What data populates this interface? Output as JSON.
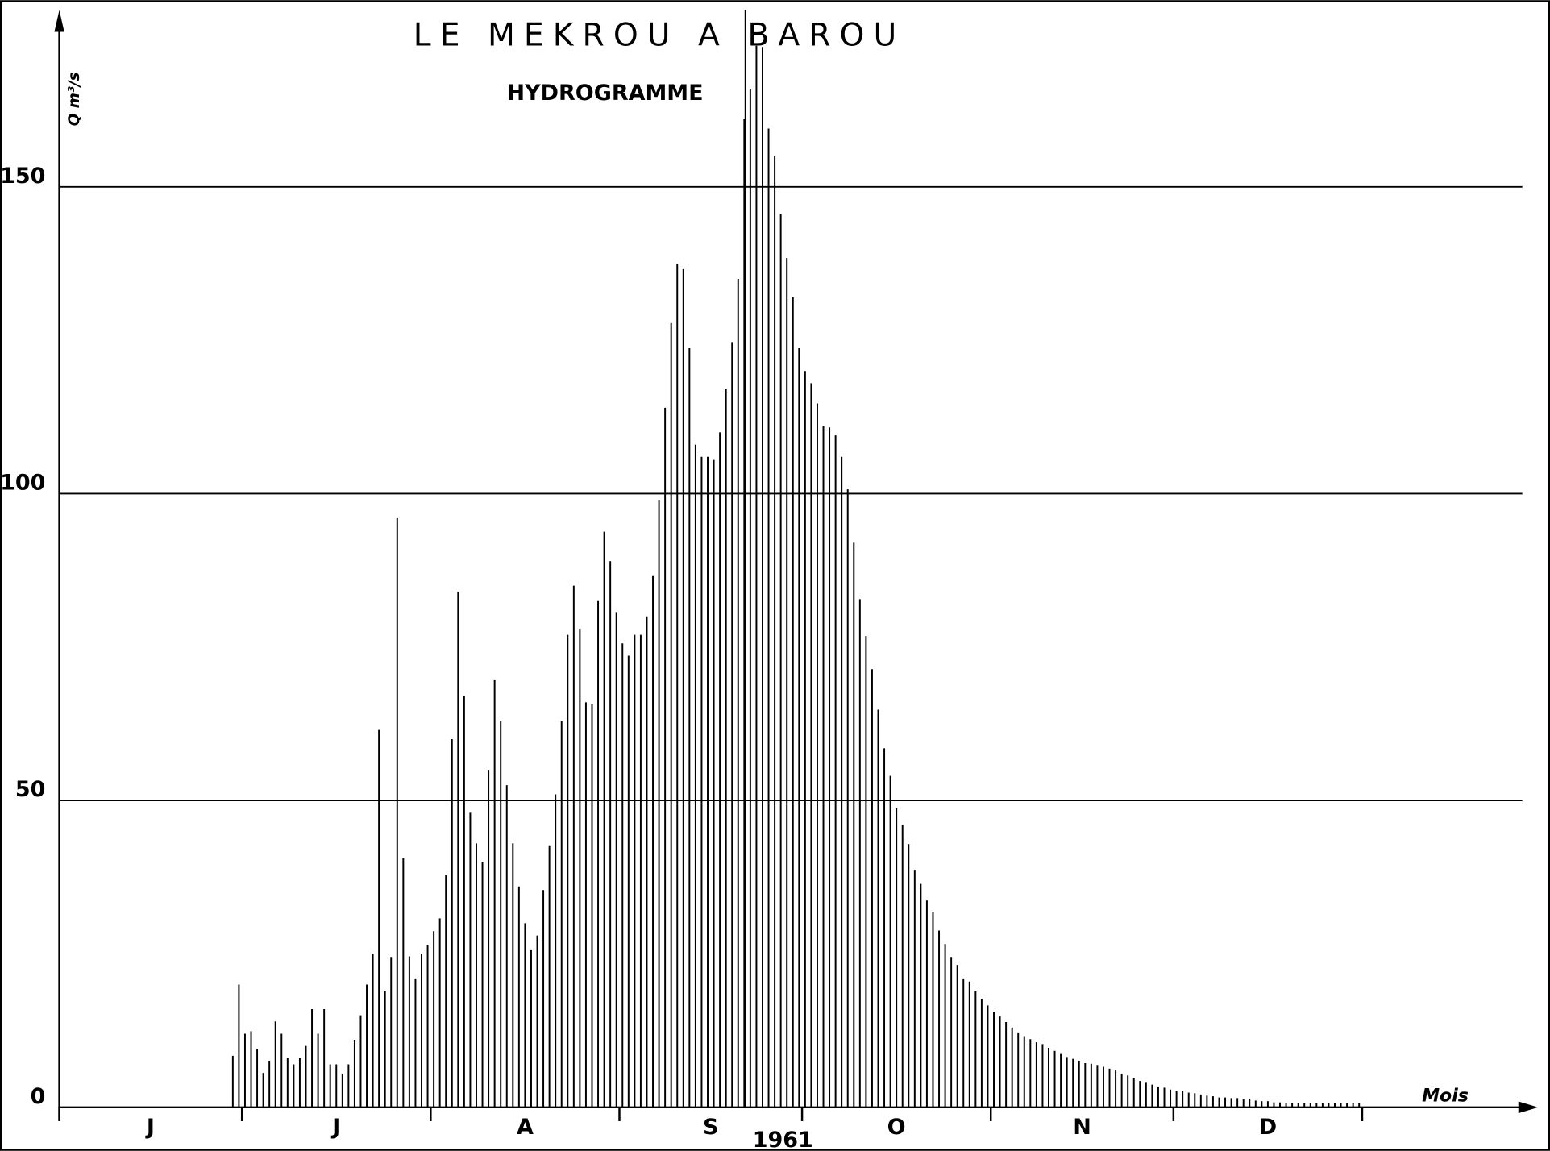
{
  "chart_data": {
    "type": "bar",
    "title": "LE MEKROU A BAROU",
    "subtitle": "HYDROGRAMME",
    "ylabel": "Q m³/s",
    "xlabel": "Mois",
    "annotation": "1961",
    "categories": [
      "J",
      null,
      null,
      null,
      null,
      null,
      null,
      null,
      null,
      null,
      null,
      null,
      null,
      null,
      null,
      null,
      null,
      null,
      null,
      null,
      null,
      null,
      null,
      null,
      null,
      null,
      null,
      null,
      null,
      null,
      "J",
      null,
      null,
      null,
      null,
      null,
      null,
      null,
      null,
      null,
      null,
      null,
      null,
      null,
      null,
      null,
      null,
      null,
      null,
      null,
      null,
      null,
      null,
      null,
      null,
      null,
      null,
      null,
      null,
      null,
      null,
      "A",
      null,
      null,
      null,
      null,
      null,
      null,
      null,
      null,
      null,
      null,
      null,
      null,
      null,
      null,
      null,
      null,
      null,
      null,
      null,
      null,
      null,
      null,
      null,
      null,
      null,
      null,
      null,
      null,
      null,
      null,
      "S",
      null,
      null,
      null,
      null,
      null,
      null,
      null,
      null,
      null,
      null,
      null,
      null,
      null,
      null,
      null,
      null,
      null,
      null,
      null,
      null,
      null,
      null,
      null,
      null,
      null,
      null,
      null,
      null,
      null,
      "O",
      null,
      null,
      null,
      null,
      null,
      null,
      null,
      null,
      null,
      null,
      null,
      null,
      null,
      null,
      null,
      null,
      null,
      null,
      null,
      null,
      null,
      null,
      null,
      null,
      null,
      null,
      null,
      null,
      null,
      null,
      "N",
      null,
      null,
      null,
      null,
      null,
      null,
      null,
      null,
      null,
      null,
      null,
      null,
      null,
      null,
      null,
      null,
      null,
      null,
      null,
      null,
      null,
      null,
      null,
      null,
      null,
      null,
      null,
      null,
      null,
      "D",
      null,
      null,
      null,
      null,
      null,
      null,
      null,
      null,
      null,
      null,
      null,
      null,
      null,
      null,
      null,
      null,
      null,
      null,
      null,
      null,
      null,
      null,
      null,
      null,
      null,
      null,
      null,
      null,
      null,
      null
    ],
    "values": [
      null,
      null,
      null,
      null,
      null,
      null,
      null,
      null,
      null,
      null,
      null,
      null,
      null,
      null,
      null,
      null,
      null,
      null,
      null,
      null,
      null,
      null,
      null,
      null,
      null,
      null,
      null,
      null,
      8.4,
      20,
      12,
      12.4,
      9.5,
      5.6,
      7.6,
      14,
      12,
      8,
      7,
      8,
      10,
      16,
      12,
      16,
      7,
      7,
      5.5,
      7,
      11,
      15,
      20,
      25,
      61.5,
      19,
      24.5,
      96,
      40.6,
      24.6,
      21,
      25,
      26.5,
      28.7,
      30.8,
      37.8,
      60,
      84,
      67,
      48,
      43,
      40,
      55,
      69.6,
      63,
      52.5,
      43,
      36,
      30,
      25.6,
      28,
      35.4,
      42.7,
      51,
      63,
      77,
      85,
      78,
      66,
      65.7,
      82.5,
      93.8,
      89,
      80.7,
      75.6,
      73.6,
      77,
      77,
      80,
      86.7,
      99,
      114,
      127.8,
      137.4,
      136.6,
      123.7,
      108,
      106,
      106,
      105.5,
      110,
      117,
      124.7,
      135,
      161,
      166,
      173,
      172.8,
      159.5,
      155,
      145.6,
      138.4,
      132,
      123.7,
      120,
      118,
      114.7,
      111,
      110.8,
      109.5,
      106,
      100.7,
      92,
      82.8,
      76.8,
      71.4,
      64.8,
      58.5,
      54,
      48.7,
      46,
      42.9,
      38.7,
      36.4,
      33.7,
      31.9,
      28.8,
      26.6,
      24.5,
      23.2,
      21,
      20.5,
      19,
      17.7,
      16.6,
      15.6,
      14.8,
      13.9,
      13,
      12.2,
      11.6,
      11.1,
      10.6,
      10.3,
      9.7,
      9.2,
      8.7,
      8.2,
      7.9,
      7.6,
      7.2,
      7.1,
      6.9,
      6.6,
      6.3,
      6,
      5.5,
      5.2,
      4.8,
      4.3,
      4,
      3.7,
      3.4,
      3.2,
      2.9,
      2.7,
      2.6,
      2.4,
      2.3,
      2.1,
      1.9,
      1.8,
      1.6,
      1.6,
      1.5,
      1.5,
      1.3,
      1.3,
      1.1,
      1,
      1,
      0.8,
      0.8,
      0.7,
      0.7,
      0.7,
      0.7,
      0.7,
      0.7,
      0.7,
      0.7,
      0.7,
      0.7,
      0.7,
      0.7,
      0.7
    ],
    "color": "#000000",
    "ylim": [
      0,
      178
    ],
    "yticks": [
      0,
      50,
      100,
      150
    ],
    "grid": true
  }
}
